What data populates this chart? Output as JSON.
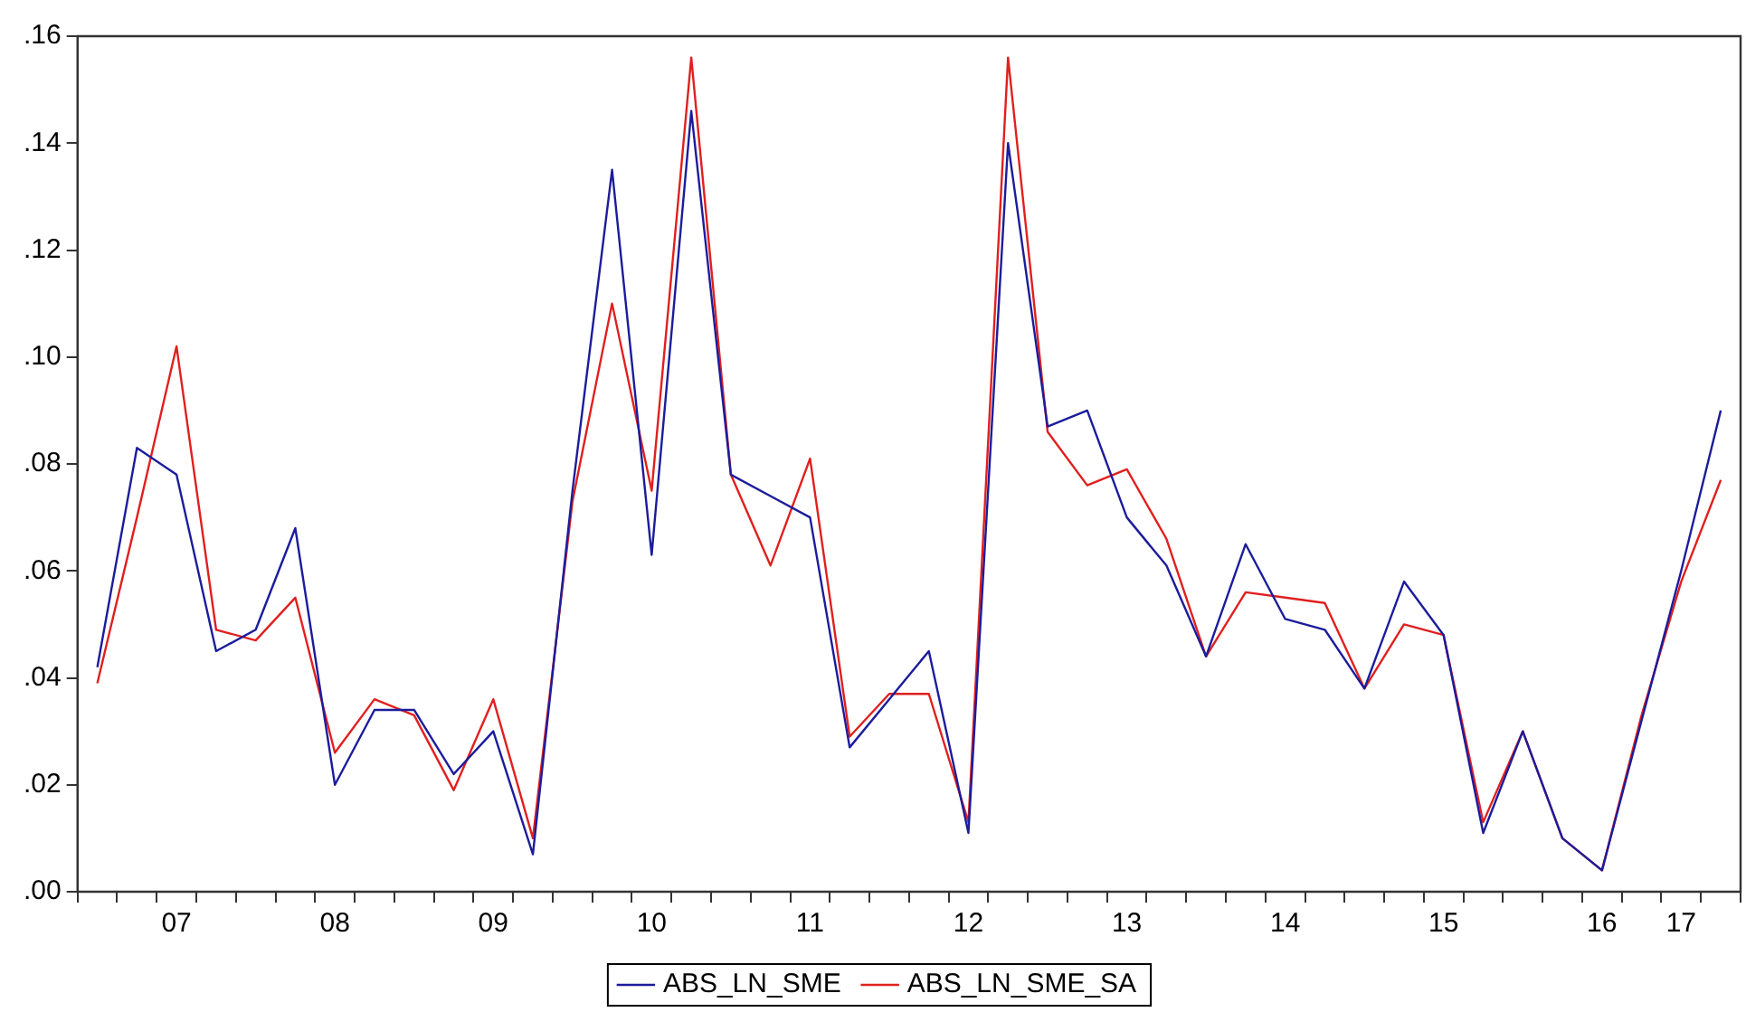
{
  "chart_data": {
    "type": "line",
    "categories": [
      null,
      null,
      "07",
      null,
      null,
      null,
      "08",
      null,
      null,
      null,
      "09",
      null,
      null,
      null,
      "10",
      null,
      null,
      null,
      "11",
      null,
      null,
      null,
      "12",
      null,
      null,
      null,
      "13",
      null,
      null,
      null,
      "14",
      null,
      null,
      null,
      "15",
      null,
      null,
      null,
      "16",
      null,
      "17",
      null
    ],
    "series": [
      {
        "name": "ABS_LN_SME",
        "color": "#1c1c9c",
        "values": [
          0.042,
          0.083,
          0.078,
          0.045,
          0.049,
          0.068,
          0.02,
          0.034,
          0.034,
          0.022,
          0.03,
          0.007,
          0.075,
          0.135,
          0.063,
          0.146,
          0.078,
          0.074,
          0.07,
          0.027,
          0.036,
          0.045,
          0.011,
          0.14,
          0.087,
          0.09,
          0.07,
          0.061,
          0.044,
          0.065,
          0.051,
          0.049,
          0.038,
          0.058,
          0.048,
          0.011,
          0.03,
          0.01,
          0.004,
          0.032,
          0.06,
          0.09
        ]
      },
      {
        "name": "ABS_LN_SME_SA",
        "color": "#e0201f",
        "values": [
          0.039,
          0.07,
          0.102,
          0.049,
          0.047,
          0.055,
          0.026,
          0.036,
          0.033,
          0.019,
          0.036,
          0.01,
          0.073,
          0.11,
          0.075,
          0.156,
          0.078,
          0.061,
          0.081,
          0.029,
          0.037,
          0.037,
          0.013,
          0.156,
          0.086,
          0.076,
          0.079,
          0.066,
          0.044,
          0.056,
          0.055,
          0.054,
          0.038,
          0.05,
          0.048,
          0.013,
          0.03,
          0.01,
          0.004,
          0.033,
          0.058,
          0.077
        ]
      }
    ],
    "ylim": [
      0,
      0.16
    ],
    "yticks": [
      {
        "value": 0,
        "label": ".00"
      },
      {
        "value": 0.02,
        "label": ".02"
      },
      {
        "value": 0.04,
        "label": ".04"
      },
      {
        "value": 0.06,
        "label": ".06"
      },
      {
        "value": 0.08,
        "label": ".08"
      },
      {
        "value": 0.1,
        "label": ".10"
      },
      {
        "value": 0.12,
        "label": ".12"
      },
      {
        "value": 0.14,
        "label": ".14"
      },
      {
        "value": 0.16,
        "label": ".16"
      }
    ],
    "grid": false,
    "legend": "bottom",
    "marker": "none",
    "line_style": "solid"
  }
}
